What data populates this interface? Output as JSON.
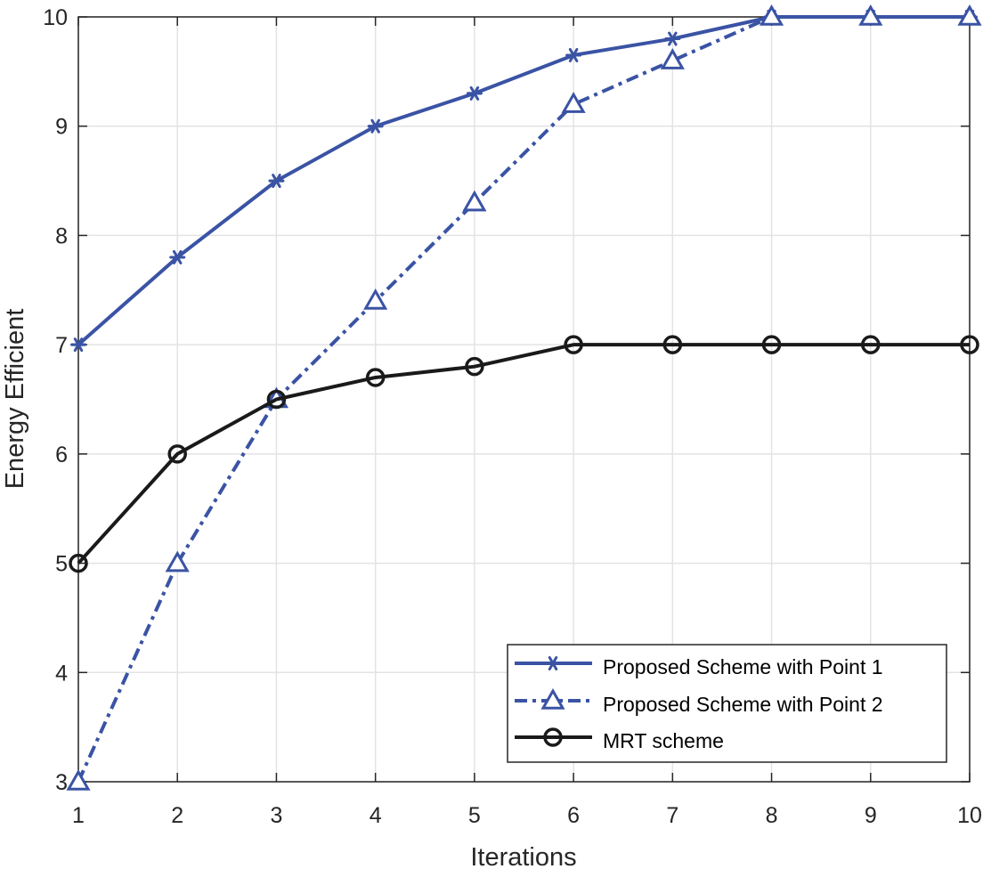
{
  "chart_data": {
    "type": "line",
    "title": "",
    "xlabel": "Iterations",
    "ylabel": "Energy Efficient",
    "xlim": [
      1,
      10
    ],
    "ylim": [
      3,
      10
    ],
    "xticks": [
      1,
      2,
      3,
      4,
      5,
      6,
      7,
      8,
      9,
      10
    ],
    "yticks": [
      3,
      4,
      5,
      6,
      7,
      8,
      9,
      10
    ],
    "grid": true,
    "legend_position": "bottom-right",
    "x": [
      1,
      2,
      3,
      4,
      5,
      6,
      7,
      8,
      9,
      10
    ],
    "series": [
      {
        "name": "Proposed Scheme with Point 1",
        "values": [
          7,
          7.8,
          8.5,
          9,
          9.3,
          9.65,
          9.8,
          10,
          10,
          10
        ],
        "color": "#3a53a4",
        "line_style": "solid",
        "marker": "asterisk"
      },
      {
        "name": "Proposed Scheme with Point 2",
        "values": [
          3,
          5,
          6.5,
          7.4,
          8.3,
          9.2,
          9.6,
          10,
          10,
          10
        ],
        "color": "#3a53a4",
        "line_style": "dash-dot",
        "marker": "triangle"
      },
      {
        "name": "MRT scheme",
        "values": [
          5,
          6,
          6.5,
          6.7,
          6.8,
          7,
          7,
          7,
          7,
          7
        ],
        "color": "#1a1a1a",
        "line_style": "solid",
        "marker": "circle"
      }
    ]
  }
}
